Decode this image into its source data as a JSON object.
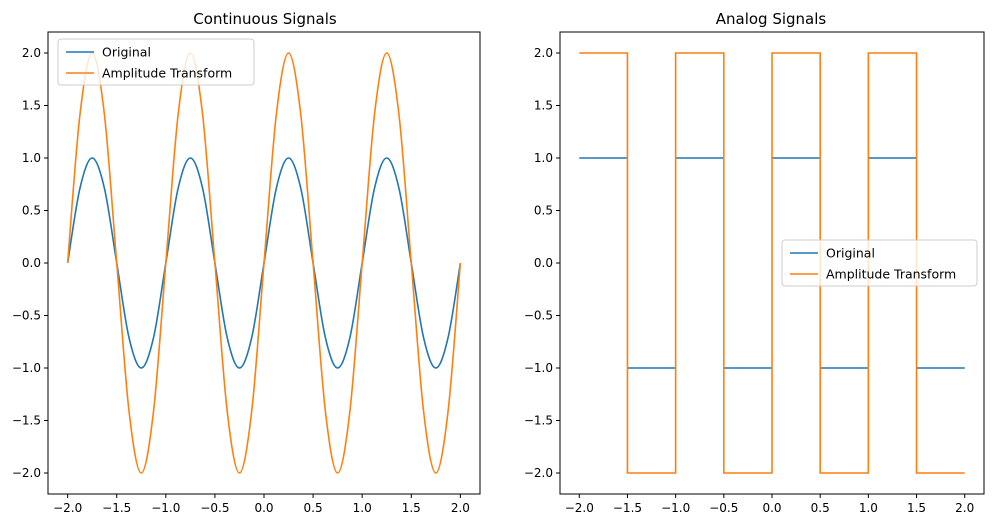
{
  "chart_data": [
    {
      "type": "line",
      "title": "Continuous Signals",
      "xlim": [
        -2.2,
        2.2
      ],
      "ylim": [
        -2.2,
        2.2
      ],
      "xticks": [
        -2.0,
        -1.5,
        -1.0,
        -0.5,
        0.0,
        0.5,
        1.0,
        1.5,
        2.0
      ],
      "yticks": [
        -2.0,
        -1.5,
        -1.0,
        -0.5,
        0.0,
        0.5,
        1.0,
        1.5,
        2.0
      ],
      "xtick_labels": [
        "−2.0",
        "−1.5",
        "−1.0",
        "−0.5",
        "0.0",
        "0.5",
        "1.0",
        "1.5",
        "2.0"
      ],
      "ytick_labels": [
        "−2.0",
        "−1.5",
        "−1.0",
        "−0.5",
        "0.0",
        "0.5",
        "1.0",
        "1.5",
        "2.0"
      ],
      "grid": false,
      "legend": "top-left",
      "series": [
        {
          "name": "Original",
          "color": "#1f77b4",
          "x": [
            -2.0,
            -1.875,
            -1.75,
            -1.625,
            -1.5,
            -1.375,
            -1.25,
            -1.125,
            -1.0,
            -0.875,
            -0.75,
            -0.625,
            -0.5,
            -0.375,
            -0.25,
            -0.125,
            0.0,
            0.125,
            0.25,
            0.375,
            0.5,
            0.625,
            0.75,
            0.875,
            1.0,
            1.125,
            1.25,
            1.375,
            1.5,
            1.625,
            1.75,
            1.875,
            2.0
          ],
          "y": [
            0.0,
            0.71,
            1.0,
            0.71,
            0.0,
            -0.71,
            -1.0,
            -0.71,
            0.0,
            0.71,
            1.0,
            0.71,
            0.0,
            -0.71,
            -1.0,
            -0.71,
            0.0,
            0.71,
            1.0,
            0.71,
            0.0,
            -0.71,
            -1.0,
            -0.71,
            0.0,
            0.71,
            1.0,
            0.71,
            0.0,
            -0.71,
            -1.0,
            -0.71,
            0.0
          ]
        },
        {
          "name": "Amplitude Transform",
          "color": "#ff7f0e",
          "x": [
            -2.0,
            -1.875,
            -1.75,
            -1.625,
            -1.5,
            -1.375,
            -1.25,
            -1.125,
            -1.0,
            -0.875,
            -0.75,
            -0.625,
            -0.5,
            -0.375,
            -0.25,
            -0.125,
            0.0,
            0.125,
            0.25,
            0.375,
            0.5,
            0.625,
            0.75,
            0.875,
            1.0,
            1.125,
            1.25,
            1.375,
            1.5,
            1.625,
            1.75,
            1.875,
            2.0
          ],
          "y": [
            0.0,
            1.41,
            2.0,
            1.41,
            0.0,
            -1.41,
            -2.0,
            -1.41,
            0.0,
            1.41,
            2.0,
            1.41,
            0.0,
            -1.41,
            -2.0,
            -1.41,
            0.0,
            1.41,
            2.0,
            1.41,
            0.0,
            -1.41,
            -2.0,
            -1.41,
            0.0,
            1.41,
            2.0,
            1.41,
            0.0,
            -1.41,
            -2.0,
            -1.41,
            0.0
          ]
        }
      ]
    },
    {
      "type": "line",
      "title": "Analog Signals",
      "xlim": [
        -2.2,
        2.2
      ],
      "ylim": [
        -2.2,
        2.2
      ],
      "xticks": [
        -2.0,
        -1.5,
        -1.0,
        -0.5,
        0.0,
        0.5,
        1.0,
        1.5,
        2.0
      ],
      "yticks": [
        -2.0,
        -1.5,
        -1.0,
        -0.5,
        0.0,
        0.5,
        1.0,
        1.5,
        2.0
      ],
      "xtick_labels": [
        "−2.0",
        "−1.5",
        "−1.0",
        "−0.5",
        "0.0",
        "0.5",
        "1.0",
        "1.5",
        "2.0"
      ],
      "ytick_labels": [
        "−2.0",
        "−1.5",
        "−1.0",
        "−0.5",
        "0.0",
        "0.5",
        "1.0",
        "1.5",
        "2.0"
      ],
      "grid": false,
      "legend": "center-right",
      "series": [
        {
          "name": "Original",
          "color": "#1f77b4",
          "x": [
            -2.0,
            -1.5,
            -1.5,
            -1.0,
            -1.0,
            -0.5,
            -0.5,
            0.0,
            0.0,
            0.5,
            0.5,
            1.0,
            1.0,
            1.5,
            1.5,
            2.0
          ],
          "y": [
            1.0,
            1.0,
            -1.0,
            -1.0,
            1.0,
            1.0,
            -1.0,
            -1.0,
            1.0,
            1.0,
            -1.0,
            -1.0,
            1.0,
            1.0,
            -1.0,
            -1.0
          ],
          "segmented": true
        },
        {
          "name": "Amplitude Transform",
          "color": "#ff7f0e",
          "x": [
            -2.0,
            -1.5,
            -1.5,
            -1.0,
            -1.0,
            -0.5,
            -0.5,
            0.0,
            0.0,
            0.5,
            0.5,
            1.0,
            1.0,
            1.5,
            1.5,
            2.0
          ],
          "y": [
            2.0,
            2.0,
            -2.0,
            -2.0,
            2.0,
            2.0,
            -2.0,
            -2.0,
            2.0,
            2.0,
            -2.0,
            -2.0,
            2.0,
            2.0,
            -2.0,
            -2.0
          ],
          "segmented": false
        }
      ]
    }
  ]
}
